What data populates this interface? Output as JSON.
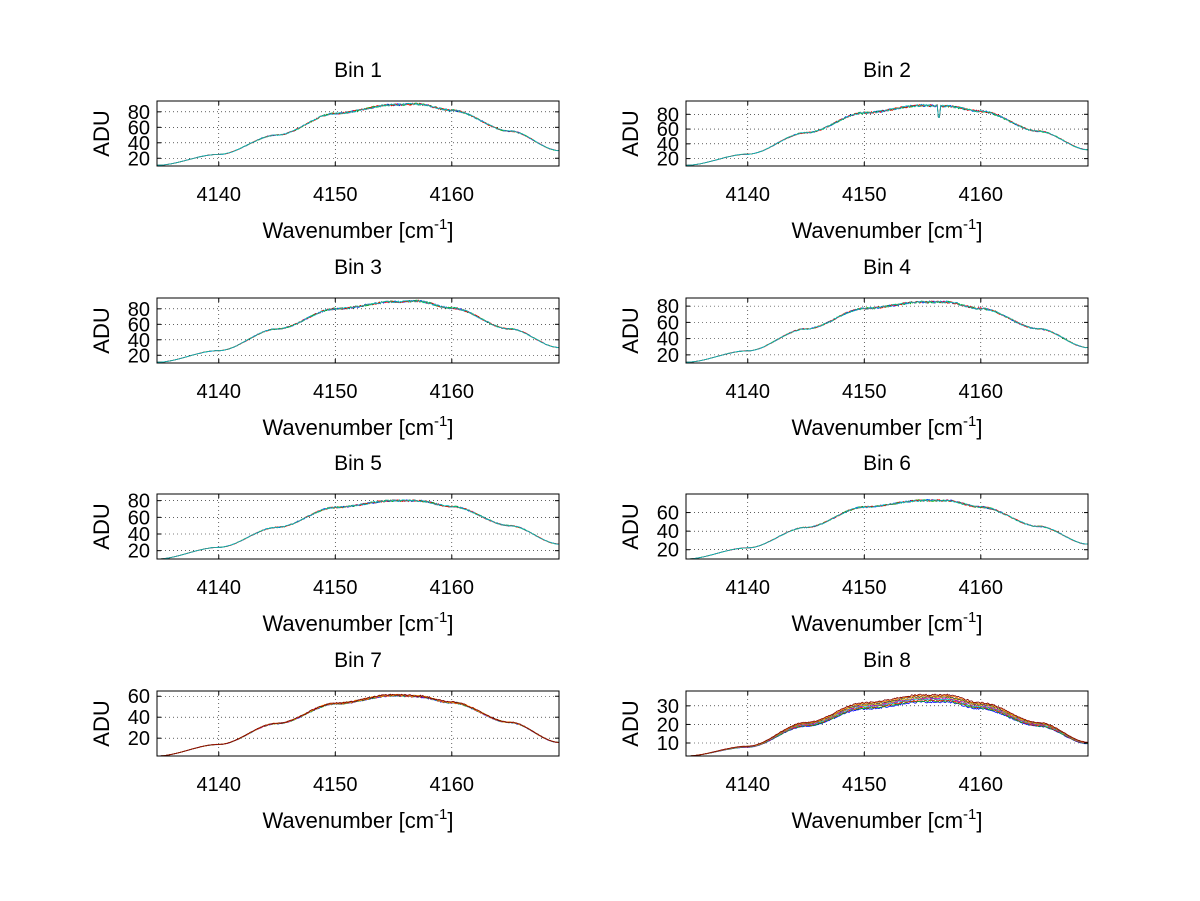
{
  "chart_data": [
    {
      "type": "line",
      "title": "Bin 1",
      "xlabel": "Wavenumber [cm",
      "xlabel_sup": "-1",
      "xlabel_end": "]",
      "ylabel": "ADU",
      "xlim": [
        4134.7,
        4169.2
      ],
      "ylim": [
        10,
        94
      ],
      "xticks": [
        4140,
        4150,
        4160
      ],
      "yticks": [
        20,
        40,
        60,
        80
      ],
      "series_values": [
        {
          "x": 4134.7,
          "y": 11
        },
        {
          "x": 4140,
          "y": 25
        },
        {
          "x": 4145,
          "y": 50
        },
        {
          "x": 4150,
          "y": 78
        },
        {
          "x": 4155,
          "y": 89
        },
        {
          "x": 4157,
          "y": 90
        },
        {
          "x": 4160,
          "y": 82
        },
        {
          "x": 4165,
          "y": 55
        },
        {
          "x": 4169.2,
          "y": 30
        }
      ],
      "grid": "dotted",
      "noise": 1.4,
      "spread": 0
    },
    {
      "type": "line",
      "title": "Bin 2",
      "xlabel": "Wavenumber [cm",
      "xlabel_sup": "-1",
      "xlabel_end": "]",
      "ylabel": "ADU",
      "xlim": [
        4134.7,
        4169.2
      ],
      "ylim": [
        10,
        98
      ],
      "xticks": [
        4140,
        4150,
        4160
      ],
      "yticks": [
        20,
        40,
        60,
        80
      ],
      "series_values": [
        {
          "x": 4134.7,
          "y": 11
        },
        {
          "x": 4140,
          "y": 26
        },
        {
          "x": 4145,
          "y": 55
        },
        {
          "x": 4150,
          "y": 82
        },
        {
          "x": 4155,
          "y": 92
        },
        {
          "x": 4157,
          "y": 91
        },
        {
          "x": 4160,
          "y": 84
        },
        {
          "x": 4165,
          "y": 57
        },
        {
          "x": 4169.2,
          "y": 32
        }
      ],
      "grid": "dotted",
      "noise": 1.6,
      "spread": 0,
      "dip": {
        "x": 4156.4,
        "y": 76
      }
    },
    {
      "type": "line",
      "title": "Bin 3",
      "xlabel": "Wavenumber [cm",
      "xlabel_sup": "-1",
      "xlabel_end": "]",
      "ylabel": "ADU",
      "xlim": [
        4134.7,
        4169.2
      ],
      "ylim": [
        10,
        94
      ],
      "xticks": [
        4140,
        4150,
        4160
      ],
      "yticks": [
        20,
        40,
        60,
        80
      ],
      "series_values": [
        {
          "x": 4134.7,
          "y": 11
        },
        {
          "x": 4140,
          "y": 26
        },
        {
          "x": 4145,
          "y": 54
        },
        {
          "x": 4150,
          "y": 80
        },
        {
          "x": 4155,
          "y": 89
        },
        {
          "x": 4157,
          "y": 90
        },
        {
          "x": 4160,
          "y": 81
        },
        {
          "x": 4165,
          "y": 54
        },
        {
          "x": 4169.2,
          "y": 30
        }
      ],
      "grid": "dotted",
      "noise": 1.4,
      "spread": 0
    },
    {
      "type": "line",
      "title": "Bin 4",
      "xlabel": "Wavenumber [cm",
      "xlabel_sup": "-1",
      "xlabel_end": "]",
      "ylabel": "ADU",
      "xlim": [
        4134.7,
        4169.2
      ],
      "ylim": [
        10,
        90
      ],
      "xticks": [
        4140,
        4150,
        4160
      ],
      "yticks": [
        20,
        40,
        60,
        80
      ],
      "series_values": [
        {
          "x": 4134.7,
          "y": 11
        },
        {
          "x": 4140,
          "y": 25
        },
        {
          "x": 4145,
          "y": 52
        },
        {
          "x": 4150,
          "y": 77
        },
        {
          "x": 4155,
          "y": 85
        },
        {
          "x": 4157,
          "y": 85
        },
        {
          "x": 4160,
          "y": 77
        },
        {
          "x": 4165,
          "y": 52
        },
        {
          "x": 4169.2,
          "y": 29
        }
      ],
      "grid": "dotted",
      "noise": 1.4,
      "spread": 0
    },
    {
      "type": "line",
      "title": "Bin 5",
      "xlabel": "Wavenumber [cm",
      "xlabel_sup": "-1",
      "xlabel_end": "]",
      "ylabel": "ADU",
      "xlim": [
        4134.7,
        4169.2
      ],
      "ylim": [
        10,
        88
      ],
      "xticks": [
        4140,
        4150,
        4160
      ],
      "yticks": [
        20,
        40,
        60,
        80
      ],
      "series_values": [
        {
          "x": 4134.7,
          "y": 10
        },
        {
          "x": 4140,
          "y": 24
        },
        {
          "x": 4145,
          "y": 48
        },
        {
          "x": 4150,
          "y": 72
        },
        {
          "x": 4155,
          "y": 80
        },
        {
          "x": 4157,
          "y": 80
        },
        {
          "x": 4160,
          "y": 73
        },
        {
          "x": 4165,
          "y": 50
        },
        {
          "x": 4169.2,
          "y": 28
        }
      ],
      "grid": "dotted",
      "noise": 1.2,
      "spread": 0
    },
    {
      "type": "line",
      "title": "Bin 6",
      "xlabel": "Wavenumber [cm",
      "xlabel_sup": "-1",
      "xlabel_end": "]",
      "ylabel": "ADU",
      "xlim": [
        4134.7,
        4169.2
      ],
      "ylim": [
        10,
        80
      ],
      "xticks": [
        4140,
        4150,
        4160
      ],
      "yticks": [
        20,
        40,
        60
      ],
      "series_values": [
        {
          "x": 4134.7,
          "y": 10
        },
        {
          "x": 4140,
          "y": 22
        },
        {
          "x": 4145,
          "y": 44
        },
        {
          "x": 4150,
          "y": 66
        },
        {
          "x": 4155,
          "y": 73
        },
        {
          "x": 4157,
          "y": 73
        },
        {
          "x": 4160,
          "y": 66
        },
        {
          "x": 4165,
          "y": 45
        },
        {
          "x": 4169.2,
          "y": 26
        }
      ],
      "grid": "dotted",
      "noise": 1.1,
      "spread": 0
    },
    {
      "type": "line",
      "title": "Bin 7",
      "xlabel": "Wavenumber [cm",
      "xlabel_sup": "-1",
      "xlabel_end": "]",
      "ylabel": "ADU",
      "xlim": [
        4134.7,
        4169.2
      ],
      "ylim": [
        3,
        65
      ],
      "xticks": [
        4140,
        4150,
        4160
      ],
      "yticks": [
        20,
        40,
        60
      ],
      "series_values": [
        {
          "x": 4134.7,
          "y": 3
        },
        {
          "x": 4140,
          "y": 14
        },
        {
          "x": 4145,
          "y": 34
        },
        {
          "x": 4150,
          "y": 53
        },
        {
          "x": 4155,
          "y": 61
        },
        {
          "x": 4157,
          "y": 60
        },
        {
          "x": 4160,
          "y": 54
        },
        {
          "x": 4165,
          "y": 35
        },
        {
          "x": 4169.2,
          "y": 16
        }
      ],
      "grid": "dotted",
      "noise": 0.9,
      "spread": 0.5
    },
    {
      "type": "line",
      "title": "Bin 8",
      "xlabel": "Wavenumber [cm",
      "xlabel_sup": "-1",
      "xlabel_end": "]",
      "ylabel": "ADU",
      "xlim": [
        4134.7,
        4169.2
      ],
      "ylim": [
        3,
        38
      ],
      "xticks": [
        4140,
        4150,
        4160
      ],
      "yticks": [
        10,
        20,
        30
      ],
      "series_values": [
        {
          "x": 4134.7,
          "y": 3
        },
        {
          "x": 4140,
          "y": 8
        },
        {
          "x": 4145,
          "y": 20
        },
        {
          "x": 4150,
          "y": 30
        },
        {
          "x": 4155,
          "y": 34
        },
        {
          "x": 4157,
          "y": 34
        },
        {
          "x": 4160,
          "y": 30
        },
        {
          "x": 4165,
          "y": 20
        },
        {
          "x": 4169.2,
          "y": 10
        }
      ],
      "grid": "dotted",
      "noise": 0.5,
      "spread": 2.2
    }
  ],
  "series_colors": [
    "#0000ff",
    "#00b000",
    "#ff0000",
    "#00bfbf",
    "#bf00bf",
    "#bfbf00",
    "#404040",
    "#ff8000",
    "#800000"
  ]
}
